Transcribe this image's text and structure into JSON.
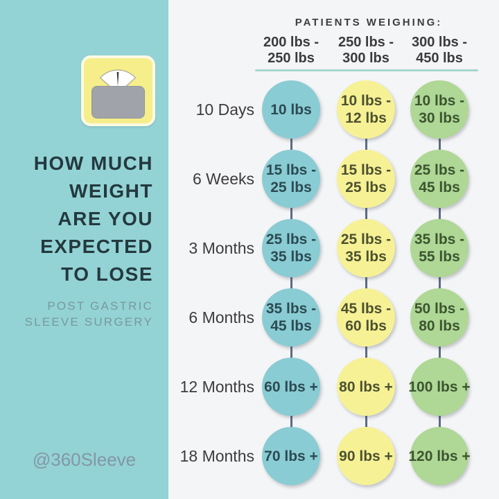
{
  "sidebar": {
    "background": "#93d3d5",
    "icon": "bathroom-scale-icon",
    "title_lines": [
      "HOW MUCH",
      "WEIGHT",
      "ARE YOU",
      "EXPECTED",
      "TO LOSE"
    ],
    "subtitle_lines": [
      "POST GASTRIC",
      "SLEEVE SURGERY"
    ],
    "handle": "@360Sleeve"
  },
  "table": {
    "header": "PATIENTS WEIGHING:",
    "divider_color": "#a5d5cf",
    "connector_color": "#5c6a85",
    "columns": [
      {
        "line1": "200 lbs -",
        "line2": "250 lbs",
        "circle_color": "#8accd3",
        "text_color": "#2c4a53"
      },
      {
        "line1": "250 lbs -",
        "line2": "300 lbs",
        "circle_color": "#f6f195",
        "text_color": "#4d5130"
      },
      {
        "line1": "300 lbs -",
        "line2": "450 lbs",
        "circle_color": "#afd795",
        "text_color": "#3b5530"
      }
    ],
    "rows": [
      {
        "label": "10 Days",
        "cells": [
          [
            "10 lbs"
          ],
          [
            "10 lbs -",
            "12 lbs"
          ],
          [
            "10 lbs -",
            "30 lbs"
          ]
        ]
      },
      {
        "label": "6 Weeks",
        "cells": [
          [
            "15 lbs -",
            "25 lbs"
          ],
          [
            "15 lbs -",
            "25 lbs"
          ],
          [
            "25 lbs -",
            "45 lbs"
          ]
        ]
      },
      {
        "label": "3 Months",
        "cells": [
          [
            "25 lbs -",
            "35 lbs"
          ],
          [
            "25 lbs -",
            "35 lbs"
          ],
          [
            "35 lbs -",
            "55 lbs"
          ]
        ]
      },
      {
        "label": "6 Months",
        "cells": [
          [
            "35 lbs -",
            "45 lbs"
          ],
          [
            "45 lbs -",
            "60 lbs"
          ],
          [
            "50 lbs -",
            "80 lbs"
          ]
        ]
      },
      {
        "label": "12 Months",
        "cells": [
          [
            "60 lbs +"
          ],
          [
            "80 lbs +"
          ],
          [
            "100 lbs +"
          ]
        ]
      },
      {
        "label": "18 Months",
        "cells": [
          [
            "70 lbs +"
          ],
          [
            "90 lbs +"
          ],
          [
            "120 lbs +"
          ]
        ]
      }
    ]
  },
  "chart_data": {
    "type": "table",
    "title": "HOW MUCH WEIGHT ARE YOU EXPECTED TO LOSE POST GASTRIC SLEEVE SURGERY",
    "subtitle": "PATIENTS WEIGHING:",
    "credit": "@360Sleeve",
    "columns": [
      "200 lbs - 250 lbs",
      "250 lbs - 300 lbs",
      "300 lbs - 450 lbs"
    ],
    "rows": [
      "10 Days",
      "6 Weeks",
      "3 Months",
      "6 Months",
      "12 Months",
      "18 Months"
    ],
    "values": [
      [
        "10 lbs",
        "10 lbs - 12 lbs",
        "10 lbs - 30 lbs"
      ],
      [
        "15 lbs - 25 lbs",
        "15 lbs - 25 lbs",
        "25 lbs - 45 lbs"
      ],
      [
        "25 lbs - 35 lbs",
        "25 lbs - 35 lbs",
        "35 lbs - 55 lbs"
      ],
      [
        "35 lbs - 45 lbs",
        "45 lbs - 60 lbs",
        "50 lbs - 80 lbs"
      ],
      [
        "60 lbs +",
        "80 lbs +",
        "100 lbs +"
      ],
      [
        "70 lbs +",
        "90 lbs +",
        "120 lbs +"
      ]
    ],
    "column_colors": [
      "#8accd3",
      "#f6f195",
      "#afd795"
    ],
    "legend_position": "none",
    "grid": false
  }
}
